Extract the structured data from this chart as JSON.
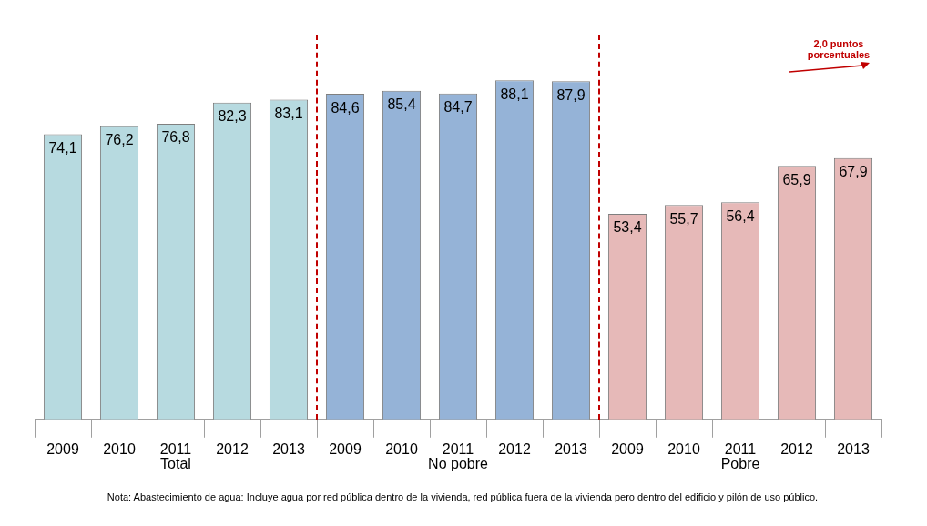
{
  "chart_data": {
    "type": "bar",
    "categories": [
      "2009",
      "2010",
      "2011",
      "2012",
      "2013",
      "2009",
      "2010",
      "2011",
      "2012",
      "2013",
      "2009",
      "2010",
      "2011",
      "2012",
      "2013"
    ],
    "series": [
      {
        "name": "Total",
        "color": "#b7dae0",
        "values": [
          74.1,
          76.2,
          76.8,
          82.3,
          83.1,
          null,
          null,
          null,
          null,
          null,
          null,
          null,
          null,
          null,
          null
        ],
        "value_labels": [
          "74,1",
          "76,2",
          "76,8",
          "82,3",
          "83,1",
          null,
          null,
          null,
          null,
          null,
          null,
          null,
          null,
          null,
          null
        ]
      },
      {
        "name": "No pobre",
        "color": "#95b3d7",
        "values": [
          null,
          null,
          null,
          null,
          null,
          84.6,
          85.4,
          84.7,
          88.1,
          87.9,
          null,
          null,
          null,
          null,
          null
        ],
        "value_labels": [
          null,
          null,
          null,
          null,
          null,
          "84,6",
          "85,4",
          "84,7",
          "88,1",
          "87,9",
          null,
          null,
          null,
          null,
          null
        ]
      },
      {
        "name": "Pobre",
        "color": "#e6b9b8",
        "values": [
          null,
          null,
          null,
          null,
          null,
          null,
          null,
          null,
          null,
          null,
          53.4,
          55.7,
          56.4,
          65.9,
          67.9
        ],
        "value_labels": [
          null,
          null,
          null,
          null,
          null,
          null,
          null,
          null,
          null,
          null,
          "53,4",
          "55,7",
          "56,4",
          "65,9",
          "67,9"
        ]
      }
    ],
    "grid": false,
    "annotations": [
      "2,0 puntos porcentuales",
      "Nota: Abastecimiento de agua: Incluye agua por red pública dentro de la vivienda, red pública fuera de la vivienda pero dentro del edificio y pilón de uso público."
    ]
  }
}
